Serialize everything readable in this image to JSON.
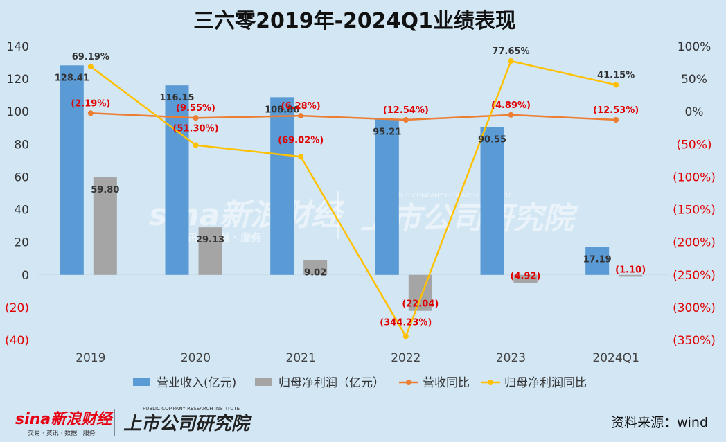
{
  "chart_data": {
    "type": "bar",
    "title": "三六零2019年-2024Q1业绩表现",
    "categories": [
      "2019",
      "2020",
      "2021",
      "2022",
      "2023",
      "2024Q1"
    ],
    "y_left": {
      "ylim": [
        -40,
        140
      ],
      "ticks": [
        140,
        120,
        100,
        80,
        60,
        40,
        20,
        0,
        -20,
        -40
      ],
      "tick_labels": [
        "140",
        "120",
        "100",
        "80",
        "60",
        "40",
        "20",
        "0",
        "(20)",
        "(40)"
      ]
    },
    "y_right": {
      "ylim": [
        -350,
        100
      ],
      "ticks": [
        100,
        50,
        0,
        -50,
        -100,
        -150,
        -200,
        -250,
        -300,
        -350
      ],
      "tick_labels": [
        "100%",
        "50%",
        "0%",
        "(50%)",
        "(100%)",
        "(150%)",
        "(200%)",
        "(250%)",
        "(300%)",
        "(350%)"
      ]
    },
    "series": [
      {
        "name": "营业收入(亿元)",
        "kind": "bar",
        "axis": "left",
        "color": "#5b9bd5",
        "values": [
          128.41,
          116.15,
          108.86,
          95.21,
          90.55,
          17.19
        ],
        "labels": [
          "128.41",
          "116.15",
          "108.86",
          "95.21",
          "90.55",
          "17.19"
        ]
      },
      {
        "name": "归母净利润（亿元）",
        "kind": "bar",
        "axis": "left",
        "color": "#a5a5a5",
        "values": [
          59.8,
          29.13,
          9.02,
          -22.04,
          -4.92,
          -1.1
        ],
        "labels": [
          "59.80",
          "29.13",
          "9.02",
          "(22.04)",
          "(4.92)",
          "(1.10)"
        ]
      },
      {
        "name": "营收同比",
        "kind": "line",
        "axis": "right",
        "color": "#ed7d31",
        "values": [
          -2.19,
          -9.55,
          -6.28,
          -12.54,
          -4.89,
          -12.53
        ],
        "labels": [
          "(2.19%)",
          "(9.55%)",
          "(6.28%)",
          "(12.54%)",
          "(4.89%)",
          "(12.53%)"
        ]
      },
      {
        "name": "归母净利润同比",
        "kind": "line",
        "axis": "right",
        "color": "#ffc000",
        "values": [
          69.19,
          -51.3,
          -69.02,
          -344.23,
          77.65,
          41.15
        ],
        "labels": [
          "69.19%",
          "(51.30%)",
          "(69.02%)",
          "(344.23%)",
          "77.65%",
          "41.15%"
        ]
      }
    ]
  },
  "watermark": {
    "brand": "sina新浪财经",
    "brand_sub": "资讯 · 数据 · 服务",
    "institute": "上市公司研究院",
    "institute_en": "PUBLIC COMPANY RESEARCH INSTITUTE"
  },
  "footer": {
    "sina_logo": "sina新浪财经",
    "sina_sub": "交易 · 资讯 · 数据 · 服务",
    "institute": "上市公司研究院",
    "institute_en": "PUBLIC COMPANY RESEARCH INSTITUTE",
    "source": "资料来源：wind"
  }
}
